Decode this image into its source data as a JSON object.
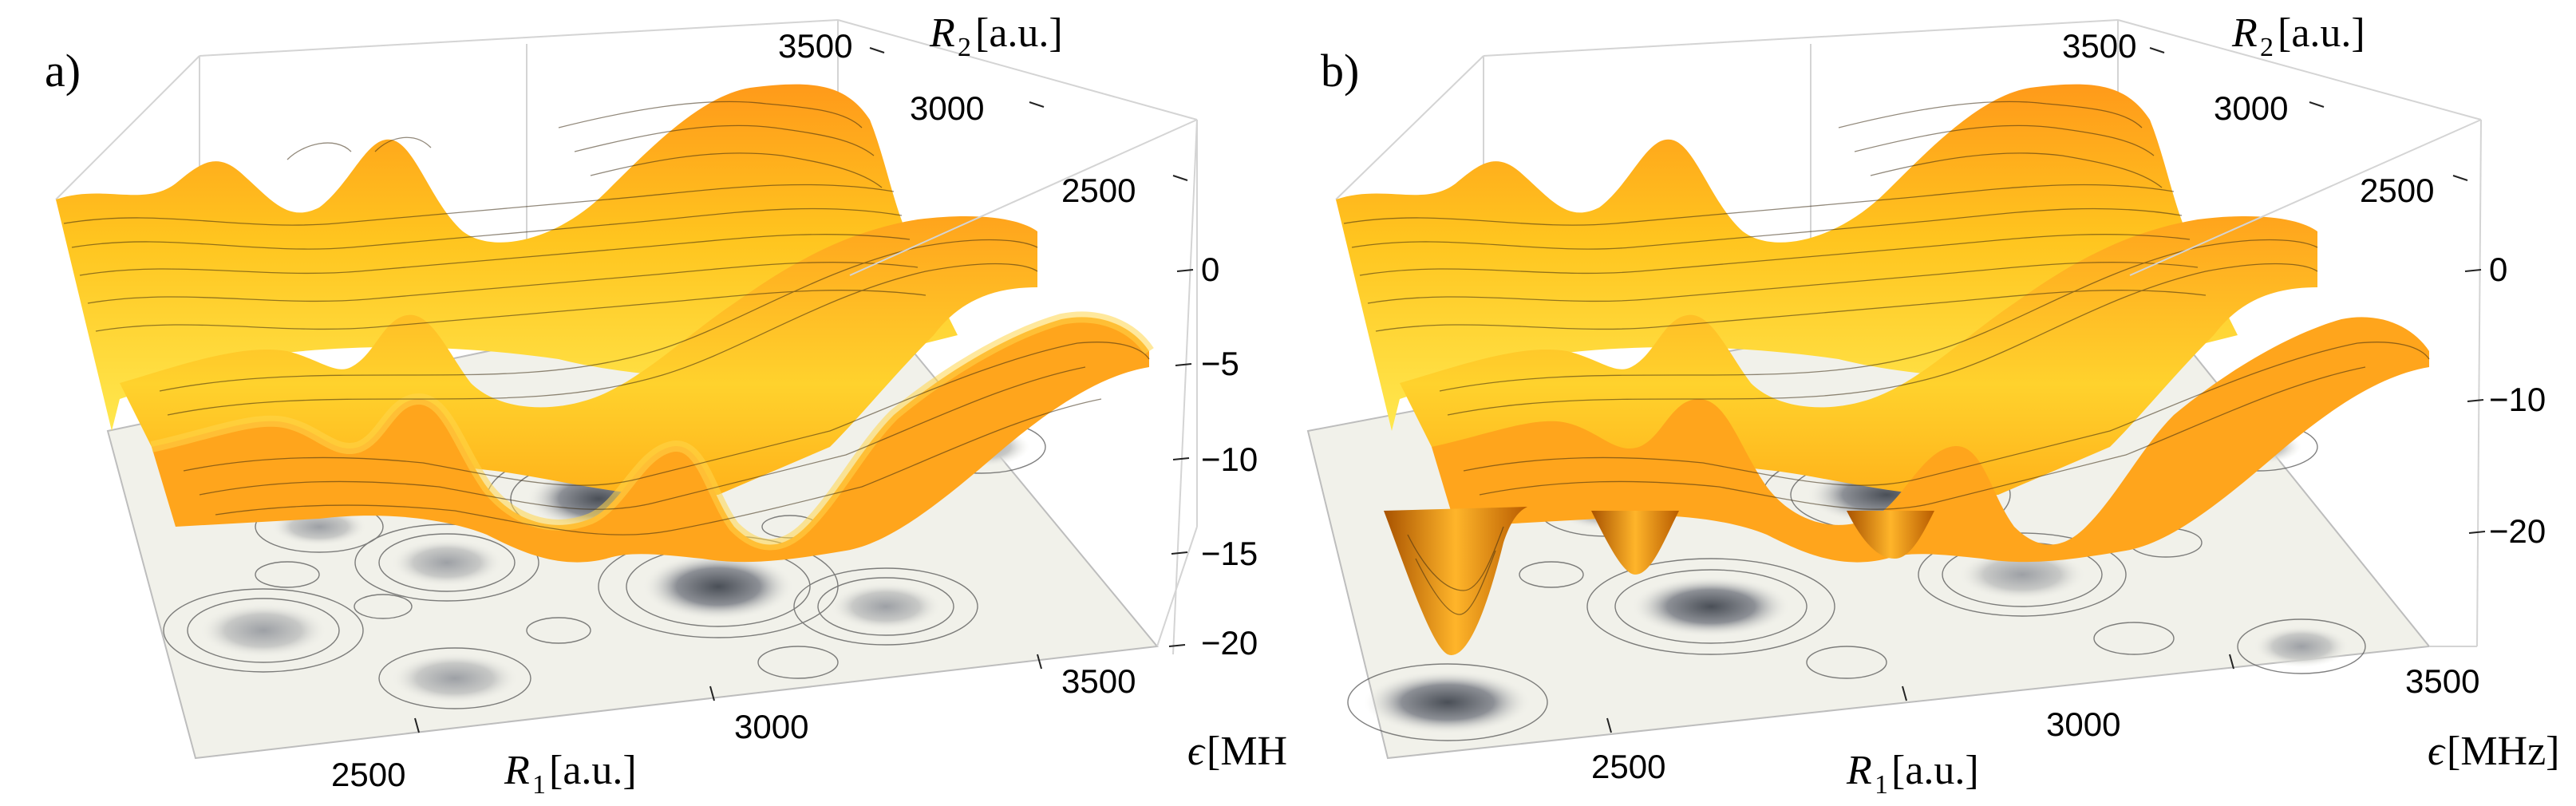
{
  "figure": {
    "panels": [
      {
        "label": "a)",
        "axes": {
          "r1_label_var": "R",
          "r1_label_sub": "1",
          "r1_label_unit": "[a.u.]",
          "r2_label_var": "R",
          "r2_label_sub": "2",
          "r2_label_unit": "[a.u.]",
          "eps_label_var": "ϵ",
          "eps_label_unit": "[MHz]",
          "r1_ticks": [
            "2500",
            "3000",
            "3500"
          ],
          "r2_ticks": [
            "2500",
            "3000",
            "3500"
          ],
          "eps_ticks": [
            "0",
            "−5",
            "−10",
            "−15",
            "−20"
          ]
        }
      },
      {
        "label": "b)",
        "axes": {
          "r1_label_var": "R",
          "r1_label_sub": "1",
          "r1_label_unit": "[a.u.]",
          "r2_label_var": "R",
          "r2_label_sub": "2",
          "r2_label_unit": "[a.u.]",
          "eps_label_var": "ϵ",
          "eps_label_unit": "[MHz]",
          "r1_ticks": [
            "2500",
            "3000",
            "3500"
          ],
          "r2_ticks": [
            "2500",
            "3000",
            "3500"
          ],
          "eps_ticks": [
            "0",
            "−10",
            "−20"
          ]
        }
      }
    ],
    "colors": {
      "surface_light": "#ffe34a",
      "surface_mid": "#ffb020",
      "surface_dark": "#c96a00",
      "floor_light": "#f1f1ea",
      "floor_dark": "#4a4f57",
      "contour_line": "#333333",
      "box_line": "#d4d4d4"
    }
  }
}
